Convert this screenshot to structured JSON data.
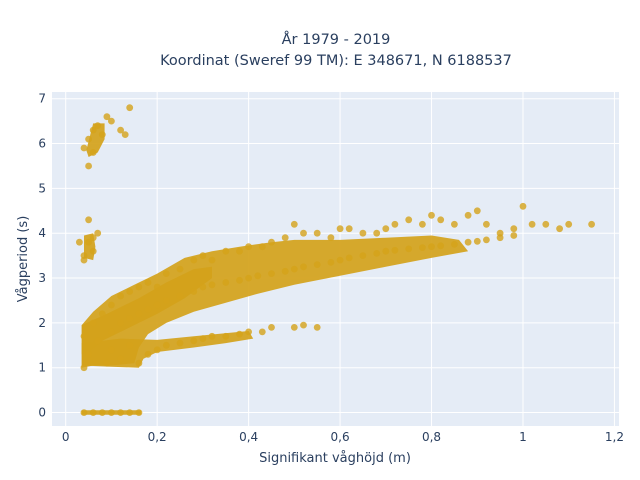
{
  "chart_data": {
    "type": "scatter",
    "title": "År 1979 - 2019",
    "subtitle": "Koordinat (Sweref 99 TM): E 348671, N 6188537",
    "xlabel": "Signifikant våghöjd (m)",
    "ylabel": "Vågperiod (s)",
    "xlim": [
      -0.03,
      1.21
    ],
    "ylim": [
      -0.3,
      7.15
    ],
    "x_ticks": [
      0,
      0.2,
      0.4,
      0.6,
      0.8,
      1,
      1.2
    ],
    "x_tick_labels": [
      "0",
      "0,2",
      "0,4",
      "0,6",
      "0,8",
      "1",
      "1,2"
    ],
    "y_ticks": [
      0,
      1,
      2,
      3,
      4,
      5,
      6,
      7
    ],
    "y_tick_labels": [
      "0",
      "1",
      "2",
      "3",
      "4",
      "5",
      "6",
      "7"
    ],
    "grid": true,
    "legend": "none",
    "colors": {
      "marker": "#d4a21a",
      "plot_bg": "#e5ecf6",
      "grid": "#ffffff",
      "text": "#2a3f5f"
    },
    "series": [
      {
        "values": [
          [
            0.04,
            0.0
          ],
          [
            0.06,
            0.0
          ],
          [
            0.08,
            0.0
          ],
          [
            0.1,
            0.0
          ],
          [
            0.12,
            0.0
          ],
          [
            0.14,
            0.0
          ],
          [
            0.16,
            0.0
          ],
          [
            0.04,
            5.9
          ],
          [
            0.05,
            6.1
          ],
          [
            0.06,
            6.3
          ],
          [
            0.07,
            6.4
          ],
          [
            0.08,
            6.2
          ],
          [
            0.09,
            6.6
          ],
          [
            0.1,
            6.5
          ],
          [
            0.12,
            6.3
          ],
          [
            0.14,
            6.8
          ],
          [
            0.13,
            6.2
          ],
          [
            0.05,
            5.5
          ],
          [
            0.06,
            5.8
          ],
          [
            0.04,
            3.4
          ],
          [
            0.05,
            3.8
          ],
          [
            0.06,
            3.9
          ],
          [
            0.05,
            4.3
          ],
          [
            0.07,
            4.0
          ],
          [
            0.03,
            3.8
          ],
          [
            0.06,
            3.6
          ],
          [
            0.04,
            3.5
          ],
          [
            0.04,
            1.0
          ],
          [
            0.05,
            1.3
          ],
          [
            0.07,
            1.6
          ],
          [
            0.09,
            1.1
          ],
          [
            0.1,
            1.4
          ],
          [
            0.12,
            1.2
          ],
          [
            0.14,
            1.5
          ],
          [
            0.16,
            1.1
          ],
          [
            0.18,
            1.3
          ],
          [
            0.2,
            1.4
          ],
          [
            0.22,
            1.5
          ],
          [
            0.25,
            1.55
          ],
          [
            0.28,
            1.6
          ],
          [
            0.3,
            1.65
          ],
          [
            0.32,
            1.7
          ],
          [
            0.35,
            1.7
          ],
          [
            0.38,
            1.75
          ],
          [
            0.4,
            1.8
          ],
          [
            0.43,
            1.8
          ],
          [
            0.45,
            1.9
          ],
          [
            0.5,
            1.9
          ],
          [
            0.52,
            1.95
          ],
          [
            0.55,
            1.9
          ],
          [
            0.04,
            1.7
          ],
          [
            0.06,
            2.0
          ],
          [
            0.08,
            2.2
          ],
          [
            0.1,
            2.4
          ],
          [
            0.12,
            2.6
          ],
          [
            0.14,
            2.7
          ],
          [
            0.16,
            2.8
          ],
          [
            0.18,
            2.9
          ],
          [
            0.2,
            2.8
          ],
          [
            0.22,
            3.1
          ],
          [
            0.25,
            3.2
          ],
          [
            0.28,
            3.4
          ],
          [
            0.3,
            3.5
          ],
          [
            0.32,
            3.4
          ],
          [
            0.35,
            3.6
          ],
          [
            0.38,
            3.6
          ],
          [
            0.4,
            3.7
          ],
          [
            0.43,
            3.7
          ],
          [
            0.45,
            3.8
          ],
          [
            0.48,
            3.9
          ],
          [
            0.5,
            4.2
          ],
          [
            0.52,
            4.0
          ],
          [
            0.55,
            4.0
          ],
          [
            0.58,
            3.9
          ],
          [
            0.6,
            4.1
          ],
          [
            0.62,
            4.1
          ],
          [
            0.65,
            4.0
          ],
          [
            0.68,
            4.0
          ],
          [
            0.7,
            4.1
          ],
          [
            0.72,
            4.2
          ],
          [
            0.75,
            4.3
          ],
          [
            0.78,
            4.2
          ],
          [
            0.8,
            4.4
          ],
          [
            0.82,
            4.3
          ],
          [
            0.85,
            4.2
          ],
          [
            0.88,
            4.4
          ],
          [
            0.9,
            4.5
          ],
          [
            0.92,
            4.2
          ],
          [
            0.95,
            4.0
          ],
          [
            0.98,
            4.1
          ],
          [
            1.0,
            4.6
          ],
          [
            1.02,
            4.2
          ],
          [
            1.05,
            4.2
          ],
          [
            1.08,
            4.1
          ],
          [
            1.1,
            4.2
          ],
          [
            1.15,
            4.2
          ],
          [
            0.1,
            1.8
          ],
          [
            0.12,
            2.0
          ],
          [
            0.14,
            2.1
          ],
          [
            0.16,
            2.2
          ],
          [
            0.18,
            2.3
          ],
          [
            0.2,
            2.4
          ],
          [
            0.22,
            2.5
          ],
          [
            0.25,
            2.6
          ],
          [
            0.28,
            2.7
          ],
          [
            0.3,
            2.8
          ],
          [
            0.32,
            2.85
          ],
          [
            0.35,
            2.9
          ],
          [
            0.38,
            2.95
          ],
          [
            0.4,
            3.0
          ],
          [
            0.42,
            3.05
          ],
          [
            0.45,
            3.1
          ],
          [
            0.48,
            3.15
          ],
          [
            0.5,
            3.2
          ],
          [
            0.52,
            3.25
          ],
          [
            0.55,
            3.3
          ],
          [
            0.58,
            3.35
          ],
          [
            0.6,
            3.4
          ],
          [
            0.62,
            3.45
          ],
          [
            0.65,
            3.5
          ],
          [
            0.68,
            3.55
          ],
          [
            0.7,
            3.6
          ],
          [
            0.72,
            3.62
          ],
          [
            0.75,
            3.65
          ],
          [
            0.78,
            3.68
          ],
          [
            0.8,
            3.7
          ],
          [
            0.82,
            3.72
          ],
          [
            0.85,
            3.75
          ],
          [
            0.88,
            3.8
          ],
          [
            0.9,
            3.82
          ],
          [
            0.92,
            3.85
          ],
          [
            0.95,
            3.9
          ],
          [
            0.98,
            3.95
          ]
        ]
      }
    ]
  }
}
